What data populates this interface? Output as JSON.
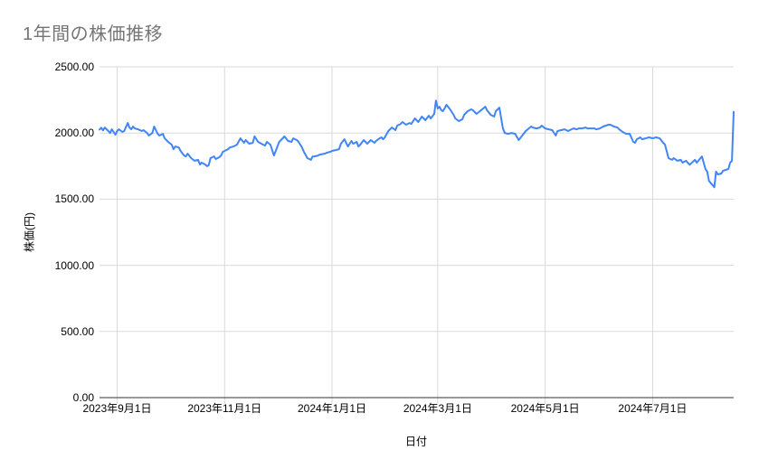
{
  "title": "1年間の株価推移",
  "colors": {
    "title_text": "#757575",
    "axis_text": "#000000",
    "line": "#4285f4",
    "gridline": "#d9d9d9",
    "axis_line": "#333333",
    "background": "#ffffff"
  },
  "chart_data": {
    "type": "line",
    "title": "1年間の株価推移",
    "xlabel": "日付",
    "ylabel": "株価(円)",
    "ylim": [
      0,
      2500
    ],
    "grid": true,
    "legend": "none",
    "y_ticks": [
      {
        "value": 0,
        "label": "0.00"
      },
      {
        "value": 500,
        "label": "500.00"
      },
      {
        "value": 1000,
        "label": "1000.00"
      },
      {
        "value": 1500,
        "label": "1500.00"
      },
      {
        "value": 2000,
        "label": "2000.00"
      },
      {
        "value": 2500,
        "label": "2500.00"
      }
    ],
    "x_ticks": [
      {
        "date": "2023-09-01",
        "label": "2023年9月1日"
      },
      {
        "date": "2023-11-01",
        "label": "2023年11月1日"
      },
      {
        "date": "2024-01-01",
        "label": "2024年1月1日"
      },
      {
        "date": "2024-03-01",
        "label": "2024年3月1日"
      },
      {
        "date": "2024-05-01",
        "label": "2024年5月1日"
      },
      {
        "date": "2024-07-01",
        "label": "2024年7月1日"
      }
    ],
    "series": [
      {
        "name": "株価",
        "color": "#4285f4",
        "points": [
          [
            "2023-08-22",
            2025
          ],
          [
            "2023-08-23",
            2040
          ],
          [
            "2023-08-24",
            2020
          ],
          [
            "2023-08-25",
            2042
          ],
          [
            "2023-08-27",
            2015
          ],
          [
            "2023-08-28",
            2000
          ],
          [
            "2023-08-29",
            2028
          ],
          [
            "2023-08-31",
            1988
          ],
          [
            "2023-09-01",
            2015
          ],
          [
            "2023-09-02",
            2028
          ],
          [
            "2023-09-04",
            2008
          ],
          [
            "2023-09-05",
            2015
          ],
          [
            "2023-09-07",
            2076
          ],
          [
            "2023-09-08",
            2042
          ],
          [
            "2023-09-09",
            2028
          ],
          [
            "2023-09-10",
            2049
          ],
          [
            "2023-09-11",
            2035
          ],
          [
            "2023-09-13",
            2028
          ],
          [
            "2023-09-15",
            2015
          ],
          [
            "2023-09-16",
            2022
          ],
          [
            "2023-09-18",
            2000
          ],
          [
            "2023-09-19",
            1981
          ],
          [
            "2023-09-21",
            2000
          ],
          [
            "2023-09-22",
            2049
          ],
          [
            "2023-09-24",
            1994
          ],
          [
            "2023-09-25",
            1981
          ],
          [
            "2023-09-27",
            1994
          ],
          [
            "2023-09-28",
            1960
          ],
          [
            "2023-09-30",
            1933
          ],
          [
            "2023-10-02",
            1912
          ],
          [
            "2023-10-03",
            1878
          ],
          [
            "2023-10-04",
            1898
          ],
          [
            "2023-10-06",
            1891
          ],
          [
            "2023-10-07",
            1865
          ],
          [
            "2023-10-09",
            1830
          ],
          [
            "2023-10-10",
            1823
          ],
          [
            "2023-10-11",
            1844
          ],
          [
            "2023-10-13",
            1810
          ],
          [
            "2023-10-15",
            1790
          ],
          [
            "2023-10-17",
            1797
          ],
          [
            "2023-10-18",
            1762
          ],
          [
            "2023-10-19",
            1776
          ],
          [
            "2023-10-21",
            1762
          ],
          [
            "2023-10-22",
            1749
          ],
          [
            "2023-10-23",
            1756
          ],
          [
            "2023-10-24",
            1810
          ],
          [
            "2023-10-26",
            1823
          ],
          [
            "2023-10-27",
            1803
          ],
          [
            "2023-10-29",
            1817
          ],
          [
            "2023-10-30",
            1830
          ],
          [
            "2023-10-31",
            1858
          ],
          [
            "2023-11-01",
            1865
          ],
          [
            "2023-11-03",
            1878
          ],
          [
            "2023-11-04",
            1891
          ],
          [
            "2023-11-06",
            1898
          ],
          [
            "2023-11-08",
            1912
          ],
          [
            "2023-11-10",
            1960
          ],
          [
            "2023-11-12",
            1926
          ],
          [
            "2023-11-13",
            1947
          ],
          [
            "2023-11-15",
            1919
          ],
          [
            "2023-11-17",
            1926
          ],
          [
            "2023-11-18",
            1975
          ],
          [
            "2023-11-20",
            1933
          ],
          [
            "2023-11-22",
            1919
          ],
          [
            "2023-11-24",
            1905
          ],
          [
            "2023-11-25",
            1933
          ],
          [
            "2023-11-27",
            1912
          ],
          [
            "2023-11-29",
            1830
          ],
          [
            "2023-12-01",
            1898
          ],
          [
            "2023-12-02",
            1933
          ],
          [
            "2023-12-05",
            1974
          ],
          [
            "2023-12-07",
            1940
          ],
          [
            "2023-12-09",
            1933
          ],
          [
            "2023-12-10",
            1960
          ],
          [
            "2023-12-12",
            1947
          ],
          [
            "2023-12-13",
            1933
          ],
          [
            "2023-12-15",
            1891
          ],
          [
            "2023-12-16",
            1858
          ],
          [
            "2023-12-18",
            1810
          ],
          [
            "2023-12-20",
            1797
          ],
          [
            "2023-12-21",
            1823
          ],
          [
            "2023-12-22",
            1823
          ],
          [
            "2023-12-24",
            1830
          ],
          [
            "2023-12-25",
            1837
          ],
          [
            "2023-12-28",
            1844
          ],
          [
            "2023-12-29",
            1851
          ],
          [
            "2023-12-31",
            1858
          ],
          [
            "2024-01-01",
            1865
          ],
          [
            "2024-01-03",
            1871
          ],
          [
            "2024-01-05",
            1878
          ],
          [
            "2024-01-06",
            1919
          ],
          [
            "2024-01-08",
            1953
          ],
          [
            "2024-01-09",
            1926
          ],
          [
            "2024-01-10",
            1898
          ],
          [
            "2024-01-12",
            1940
          ],
          [
            "2024-01-13",
            1919
          ],
          [
            "2024-01-15",
            1933
          ],
          [
            "2024-01-16",
            1898
          ],
          [
            "2024-01-17",
            1912
          ],
          [
            "2024-01-19",
            1947
          ],
          [
            "2024-01-21",
            1919
          ],
          [
            "2024-01-22",
            1933
          ],
          [
            "2024-01-23",
            1947
          ],
          [
            "2024-01-25",
            1926
          ],
          [
            "2024-01-26",
            1940
          ],
          [
            "2024-01-28",
            1960
          ],
          [
            "2024-01-29",
            1967
          ],
          [
            "2024-01-30",
            1953
          ],
          [
            "2024-01-31",
            1967
          ],
          [
            "2024-02-02",
            2015
          ],
          [
            "2024-02-04",
            2042
          ],
          [
            "2024-02-06",
            2022
          ],
          [
            "2024-02-07",
            2056
          ],
          [
            "2024-02-09",
            2069
          ],
          [
            "2024-02-10",
            2083
          ],
          [
            "2024-02-12",
            2063
          ],
          [
            "2024-02-14",
            2076
          ],
          [
            "2024-02-15",
            2069
          ],
          [
            "2024-02-17",
            2110
          ],
          [
            "2024-02-19",
            2083
          ],
          [
            "2024-02-21",
            2124
          ],
          [
            "2024-02-23",
            2097
          ],
          [
            "2024-02-25",
            2131
          ],
          [
            "2024-02-26",
            2110
          ],
          [
            "2024-02-28",
            2145
          ],
          [
            "2024-02-29",
            2245
          ],
          [
            "2024-03-01",
            2185
          ],
          [
            "2024-03-02",
            2199
          ],
          [
            "2024-03-03",
            2172
          ],
          [
            "2024-03-04",
            2165
          ],
          [
            "2024-03-06",
            2213
          ],
          [
            "2024-03-08",
            2179
          ],
          [
            "2024-03-10",
            2138
          ],
          [
            "2024-03-11",
            2110
          ],
          [
            "2024-03-13",
            2090
          ],
          [
            "2024-03-15",
            2104
          ],
          [
            "2024-03-16",
            2138
          ],
          [
            "2024-03-18",
            2165
          ],
          [
            "2024-03-20",
            2179
          ],
          [
            "2024-03-21",
            2172
          ],
          [
            "2024-03-23",
            2145
          ],
          [
            "2024-03-25",
            2165
          ],
          [
            "2024-03-28",
            2199
          ],
          [
            "2024-03-29",
            2172
          ],
          [
            "2024-03-31",
            2138
          ],
          [
            "2024-04-02",
            2124
          ],
          [
            "2024-04-03",
            2165
          ],
          [
            "2024-04-05",
            2192
          ],
          [
            "2024-04-07",
            2035
          ],
          [
            "2024-04-08",
            2001
          ],
          [
            "2024-04-10",
            1994
          ],
          [
            "2024-04-12",
            2001
          ],
          [
            "2024-04-14",
            1994
          ],
          [
            "2024-04-16",
            1947
          ],
          [
            "2024-04-18",
            1981
          ],
          [
            "2024-04-20",
            2015
          ],
          [
            "2024-04-23",
            2049
          ],
          [
            "2024-04-24",
            2042
          ],
          [
            "2024-04-26",
            2035
          ],
          [
            "2024-04-28",
            2042
          ],
          [
            "2024-04-29",
            2056
          ],
          [
            "2024-05-01",
            2035
          ],
          [
            "2024-05-03",
            2028
          ],
          [
            "2024-05-05",
            2022
          ],
          [
            "2024-05-07",
            1981
          ],
          [
            "2024-05-08",
            2015
          ],
          [
            "2024-05-10",
            2022
          ],
          [
            "2024-05-12",
            2028
          ],
          [
            "2024-05-14",
            2015
          ],
          [
            "2024-05-15",
            2022
          ],
          [
            "2024-05-17",
            2035
          ],
          [
            "2024-05-19",
            2028
          ],
          [
            "2024-05-20",
            2035
          ],
          [
            "2024-05-22",
            2035
          ],
          [
            "2024-05-24",
            2042
          ],
          [
            "2024-05-25",
            2035
          ],
          [
            "2024-05-27",
            2035
          ],
          [
            "2024-05-29",
            2035
          ],
          [
            "2024-05-30",
            2028
          ],
          [
            "2024-06-01",
            2035
          ],
          [
            "2024-06-03",
            2049
          ],
          [
            "2024-06-06",
            2063
          ],
          [
            "2024-06-07",
            2063
          ],
          [
            "2024-06-09",
            2049
          ],
          [
            "2024-06-11",
            2042
          ],
          [
            "2024-06-12",
            2028
          ],
          [
            "2024-06-14",
            2008
          ],
          [
            "2024-06-16",
            1994
          ],
          [
            "2024-06-18",
            1994
          ],
          [
            "2024-06-20",
            1933
          ],
          [
            "2024-06-21",
            1926
          ],
          [
            "2024-06-22",
            1953
          ],
          [
            "2024-06-24",
            1967
          ],
          [
            "2024-06-25",
            1953
          ],
          [
            "2024-06-27",
            1960
          ],
          [
            "2024-06-29",
            1967
          ],
          [
            "2024-07-01",
            1960
          ],
          [
            "2024-07-03",
            1967
          ],
          [
            "2024-07-05",
            1960
          ],
          [
            "2024-07-07",
            1926
          ],
          [
            "2024-07-08",
            1912
          ],
          [
            "2024-07-10",
            1810
          ],
          [
            "2024-07-12",
            1797
          ],
          [
            "2024-07-13",
            1810
          ],
          [
            "2024-07-15",
            1790
          ],
          [
            "2024-07-17",
            1797
          ],
          [
            "2024-07-18",
            1776
          ],
          [
            "2024-07-20",
            1790
          ],
          [
            "2024-07-22",
            1760
          ],
          [
            "2024-07-25",
            1797
          ],
          [
            "2024-07-26",
            1776
          ],
          [
            "2024-07-29",
            1823
          ],
          [
            "2024-07-31",
            1728
          ],
          [
            "2024-08-01",
            1708
          ],
          [
            "2024-08-02",
            1639
          ],
          [
            "2024-08-05",
            1590
          ],
          [
            "2024-08-06",
            1708
          ],
          [
            "2024-08-07",
            1687
          ],
          [
            "2024-08-09",
            1694
          ],
          [
            "2024-08-10",
            1715
          ],
          [
            "2024-08-13",
            1728
          ],
          [
            "2024-08-14",
            1776
          ],
          [
            "2024-08-15",
            1790
          ],
          [
            "2024-08-16",
            2160
          ]
        ]
      }
    ]
  }
}
